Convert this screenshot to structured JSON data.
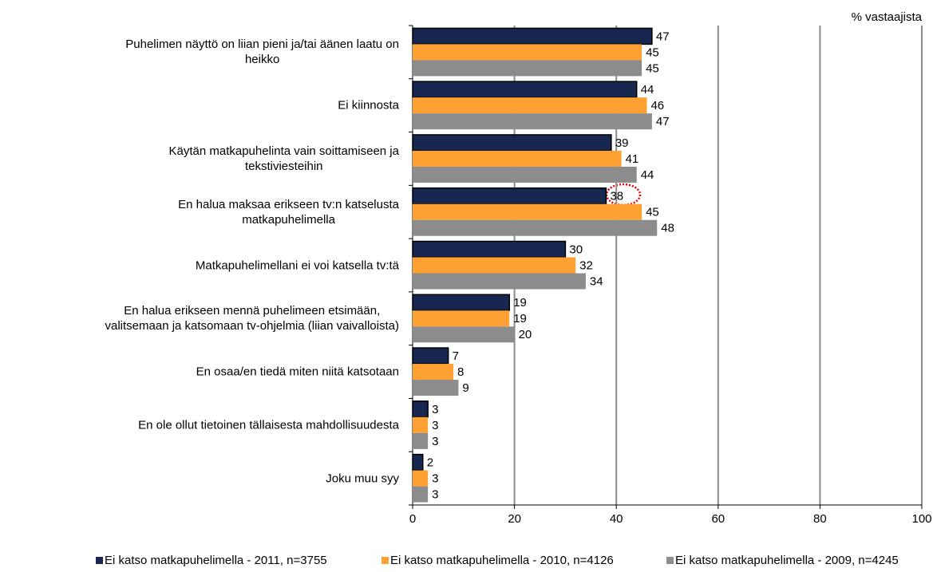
{
  "chart_data": {
    "type": "barh",
    "axis_label": "% vastaajista",
    "categories": [
      "Puhelimen näyttö on liian pieni ja/tai äänen laatu on\nheikko",
      "Ei kiinnosta",
      "Käytän matkapuhelinta vain soittamiseen ja\ntekstiviesteihin",
      "En halua maksaa erikseen tv:n katselusta\nmatkapuhelimella",
      "Matkapuhelimellani ei voi katsella tv:tä",
      "En halua erikseen mennä puhelimeen etsimään,\nvalitsemaan ja katsomaan tv-ohjelmia (liian vaivalloista)",
      "En osaa/en tiedä miten niitä katsotaan",
      "En ole ollut tietoinen tällaisesta mahdollisuudesta",
      "Joku muu syy"
    ],
    "series": [
      {
        "name": "Ei katso matkapuhelimella - 2011, n=3755",
        "color": "#17274f",
        "values": [
          47,
          44,
          39,
          38,
          30,
          19,
          7,
          3,
          2
        ]
      },
      {
        "name": "Ei katso matkapuhelimella - 2010, n=4126",
        "color": "#ffa033",
        "values": [
          45,
          46,
          41,
          45,
          32,
          19,
          8,
          3,
          3
        ]
      },
      {
        "name": "Ei katso matkapuhelimella - 2009, n=4245",
        "color": "#8c8c8c",
        "values": [
          45,
          47,
          44,
          48,
          34,
          20,
          9,
          3,
          3
        ]
      }
    ],
    "xlim": [
      0,
      100
    ],
    "xticks": [
      0,
      20,
      40,
      60,
      80,
      100
    ],
    "grid": true,
    "legend": "bottom"
  }
}
